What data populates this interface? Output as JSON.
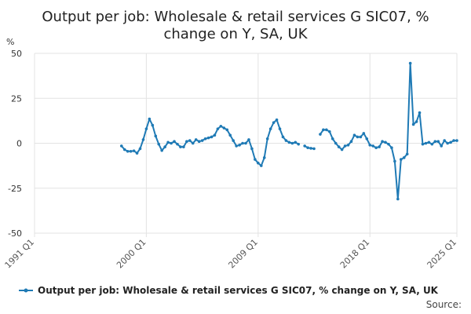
{
  "chart_data": {
    "type": "line",
    "title_lines": [
      "Output per job: Wholesale & retail services G SIC07, %",
      "change on Y, SA, UK"
    ],
    "ylabel": "%",
    "ylim": [
      -50,
      50
    ],
    "yticks": [
      50,
      25,
      0,
      -25,
      -50
    ],
    "xlim": [
      1991,
      2025
    ],
    "xticks": [
      {
        "x": 1991,
        "label": "1991 Q1"
      },
      {
        "x": 2000,
        "label": "2000 Q1"
      },
      {
        "x": 2009,
        "label": "2009 Q1"
      },
      {
        "x": 2018,
        "label": "2018 Q1"
      },
      {
        "x": 2025,
        "label": "2025 Q1"
      }
    ],
    "grid": true,
    "legend_position": "bottom",
    "source_label": "Source:",
    "color": "#1f7ab5",
    "series": [
      {
        "name": "Output per job: Wholesale & retail services G SIC07, % change on Y, SA, UK",
        "segments": [
          [
            [
              1998.0,
              -1.5
            ],
            [
              1998.25,
              -3.5
            ],
            [
              1998.5,
              -4.5
            ],
            [
              1998.75,
              -4.5
            ],
            [
              1999.0,
              -4.2
            ],
            [
              1999.25,
              -5.5
            ],
            [
              1999.5,
              -3.0
            ],
            [
              1999.75,
              2.0
            ],
            [
              2000.0,
              8.0
            ],
            [
              2000.25,
              13.5
            ],
            [
              2000.5,
              10.0
            ],
            [
              2000.75,
              4.0
            ],
            [
              2001.0,
              -0.5
            ],
            [
              2001.25,
              -4.0
            ],
            [
              2001.5,
              -2.0
            ],
            [
              2001.75,
              0.5
            ],
            [
              2002.0,
              0.0
            ],
            [
              2002.25,
              1.0
            ],
            [
              2002.5,
              -0.5
            ],
            [
              2002.75,
              -2.0
            ],
            [
              2003.0,
              -2.0
            ],
            [
              2003.25,
              1.0
            ],
            [
              2003.5,
              1.5
            ],
            [
              2003.75,
              0.0
            ],
            [
              2004.0,
              2.0
            ],
            [
              2004.25,
              1.0
            ],
            [
              2004.5,
              1.5
            ],
            [
              2004.75,
              2.5
            ],
            [
              2005.0,
              3.0
            ],
            [
              2005.25,
              3.5
            ],
            [
              2005.5,
              4.5
            ],
            [
              2005.75,
              8.0
            ],
            [
              2006.0,
              9.5
            ],
            [
              2006.25,
              8.5
            ],
            [
              2006.5,
              7.5
            ],
            [
              2006.75,
              4.5
            ],
            [
              2007.0,
              1.5
            ],
            [
              2007.25,
              -1.5
            ],
            [
              2007.5,
              -1.0
            ],
            [
              2007.75,
              0.0
            ],
            [
              2008.0,
              0.0
            ],
            [
              2008.25,
              2.0
            ],
            [
              2008.5,
              -3.0
            ],
            [
              2008.75,
              -9.0
            ],
            [
              2009.0,
              -11.0
            ],
            [
              2009.25,
              -12.5
            ],
            [
              2009.5,
              -8.0
            ],
            [
              2009.75,
              2.5
            ],
            [
              2010.0,
              8.0
            ],
            [
              2010.25,
              11.5
            ],
            [
              2010.5,
              13.0
            ],
            [
              2010.75,
              8.0
            ],
            [
              2011.0,
              3.5
            ],
            [
              2011.25,
              1.5
            ],
            [
              2011.5,
              0.5
            ],
            [
              2011.75,
              0.0
            ],
            [
              2012.0,
              0.5
            ],
            [
              2012.25,
              -0.5
            ]
          ],
          [
            [
              2012.75,
              -1.5
            ],
            [
              2013.0,
              -2.5
            ],
            [
              2013.25,
              -2.8
            ],
            [
              2013.5,
              -3.0
            ]
          ],
          [
            [
              2014.0,
              5.0
            ],
            [
              2014.25,
              7.5
            ],
            [
              2014.5,
              7.5
            ],
            [
              2014.75,
              6.5
            ],
            [
              2015.0,
              2.5
            ],
            [
              2015.25,
              0.0
            ],
            [
              2015.5,
              -2.0
            ],
            [
              2015.75,
              -3.5
            ],
            [
              2016.0,
              -1.5
            ],
            [
              2016.25,
              -1.0
            ],
            [
              2016.5,
              1.0
            ],
            [
              2016.75,
              4.5
            ],
            [
              2017.0,
              3.5
            ],
            [
              2017.25,
              3.5
            ],
            [
              2017.5,
              5.5
            ],
            [
              2017.75,
              2.5
            ],
            [
              2018.0,
              -1.0
            ],
            [
              2018.25,
              -1.5
            ],
            [
              2018.5,
              -2.5
            ],
            [
              2018.75,
              -2.0
            ],
            [
              2019.0,
              1.0
            ],
            [
              2019.25,
              0.5
            ],
            [
              2019.5,
              -0.5
            ],
            [
              2019.75,
              -2.5
            ],
            [
              2020.0,
              -10.0
            ],
            [
              2020.25,
              -31.0
            ],
            [
              2020.5,
              -9.0
            ],
            [
              2020.75,
              -8.0
            ],
            [
              2021.0,
              -6.0
            ],
            [
              2021.25,
              44.5
            ],
            [
              2021.5,
              10.5
            ],
            [
              2021.75,
              12.0
            ],
            [
              2022.0,
              17.0
            ],
            [
              2022.25,
              -0.5
            ],
            [
              2022.5,
              0.0
            ],
            [
              2022.75,
              0.5
            ],
            [
              2023.0,
              -0.5
            ],
            [
              2023.25,
              1.0
            ],
            [
              2023.5,
              1.0
            ],
            [
              2023.75,
              -1.5
            ],
            [
              2024.0,
              1.5
            ],
            [
              2024.25,
              0.0
            ],
            [
              2024.5,
              0.5
            ],
            [
              2024.75,
              1.5
            ],
            [
              2025.0,
              1.5
            ]
          ]
        ]
      }
    ]
  }
}
